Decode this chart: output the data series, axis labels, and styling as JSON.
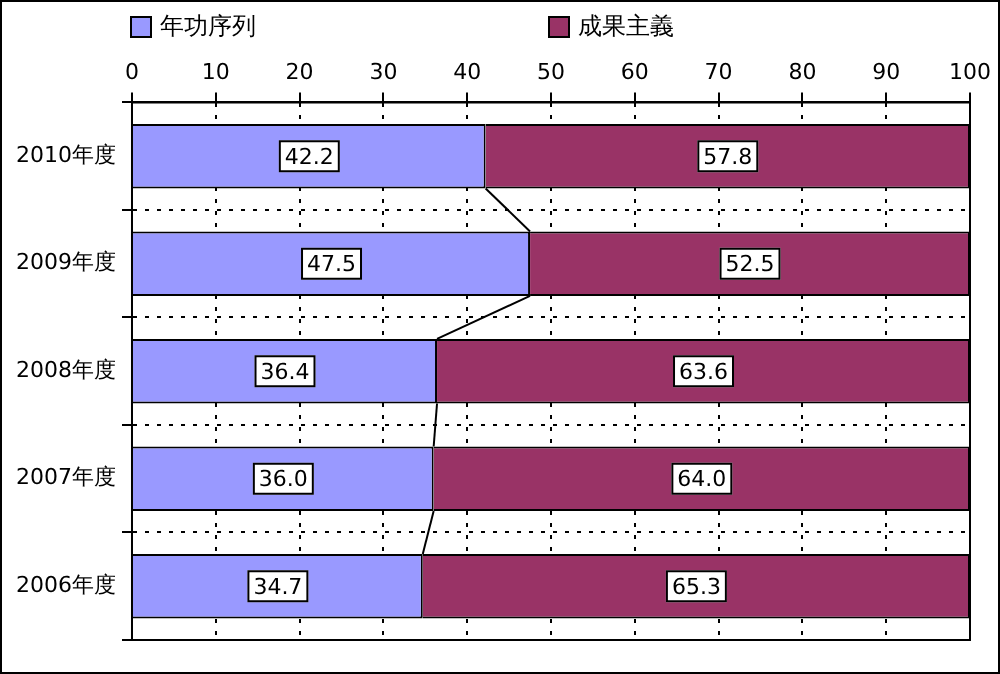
{
  "chart_data": {
    "type": "bar",
    "orientation": "horizontal",
    "stacked": true,
    "categories": [
      "2010年度",
      "2009年度",
      "2008年度",
      "2007年度",
      "2006年度"
    ],
    "series": [
      {
        "name": "年功序列",
        "color": "#9999ff",
        "values": [
          42.2,
          47.5,
          36.4,
          36.0,
          34.7
        ],
        "value_labels": [
          "42.2",
          "47.5",
          "36.4",
          "36.0",
          "34.7"
        ]
      },
      {
        "name": "成果主義",
        "color": "#993366",
        "values": [
          57.8,
          52.5,
          63.6,
          64.0,
          65.3
        ],
        "value_labels": [
          "57.8",
          "52.5",
          "63.6",
          "64.0",
          "65.3"
        ]
      }
    ],
    "xlim": [
      0,
      100
    ],
    "xticks": [
      0,
      10,
      20,
      30,
      40,
      50,
      60,
      70,
      80,
      90,
      100
    ],
    "grid": true,
    "legend": "top"
  }
}
